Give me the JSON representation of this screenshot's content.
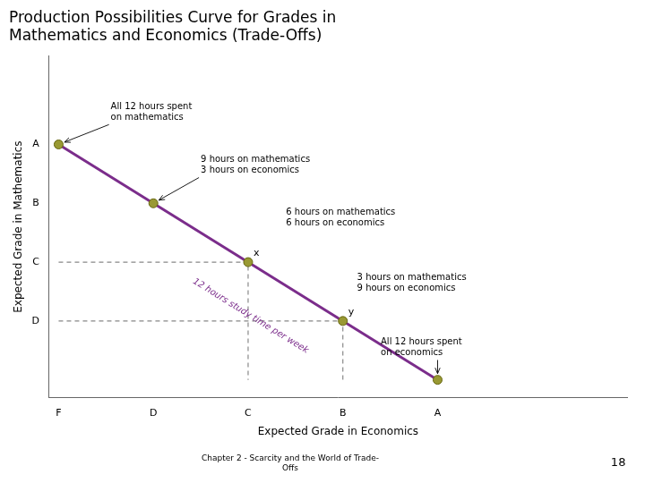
{
  "chart_data": {
    "type": "line",
    "title": "Production Possibilities Curve for Grades in\nMathematics and Economics (Trade-Offs)",
    "xlabel": "Expected Grade in Economics",
    "ylabel": "Expected Grade in Mathematics",
    "xlim": [
      -0.1,
      6.0
    ],
    "ylim": [
      -0.3,
      5.5
    ],
    "xticks": [
      {
        "value": 0,
        "label": "F"
      },
      {
        "value": 1,
        "label": "D"
      },
      {
        "value": 2,
        "label": "C"
      },
      {
        "value": 3,
        "label": "B"
      },
      {
        "value": 4,
        "label": "A"
      }
    ],
    "yticks": [
      {
        "value": 1,
        "label": "D"
      },
      {
        "value": 2,
        "label": "C"
      },
      {
        "value": 3,
        "label": "B"
      },
      {
        "value": 4,
        "label": "A"
      }
    ],
    "grid": false,
    "series": [
      {
        "type": "line",
        "color": "#7B2D8B",
        "line_style": "solid",
        "marker": "none",
        "x": [
          0,
          4
        ],
        "values": [
          4,
          0
        ]
      },
      {
        "type": "line",
        "color": "#888888",
        "line_style": "dashed",
        "marker": "none",
        "x": [
          0,
          2,
          2
        ],
        "values": [
          2,
          2,
          0
        ]
      },
      {
        "type": "line",
        "color": "#888888",
        "line_style": "dashed",
        "marker": "none",
        "x": [
          0,
          3,
          3
        ],
        "values": [
          1,
          1,
          0
        ]
      },
      {
        "type": "scatter",
        "color": "#999933",
        "marker": "circle",
        "x": [
          1,
          2,
          3,
          0,
          4
        ],
        "values": [
          3,
          2,
          1,
          4,
          0
        ],
        "labels": [
          null,
          "x",
          "y",
          null,
          null
        ]
      }
    ],
    "line_label": {
      "text": "12 hours study time per week",
      "x": 1.45,
      "y": 1.75,
      "color": "#7B2D8B"
    },
    "annotations": [
      {
        "text": "All 12 hours spent\non mathematics",
        "x": 0.55,
        "y": 4.55,
        "arrow_to": [
          0,
          4
        ]
      },
      {
        "text": "9 hours on mathematics\n3 hours on economics",
        "x": 1.5,
        "y": 3.65,
        "arrow_to": [
          1,
          3
        ]
      },
      {
        "text": "6 hours on mathematics\n6 hours on economics",
        "x": 2.4,
        "y": 2.75
      },
      {
        "text": "3 hours on mathematics\n9 hours on economics",
        "x": 3.15,
        "y": 1.65
      },
      {
        "text": "All 12 hours spent\non economics",
        "x": 3.4,
        "y": 0.55,
        "arrow_to": [
          4,
          0
        ]
      }
    ],
    "footer": "Chapter 2 - Scarcity and the World of Trade-\nOffs",
    "page_number": "18"
  }
}
